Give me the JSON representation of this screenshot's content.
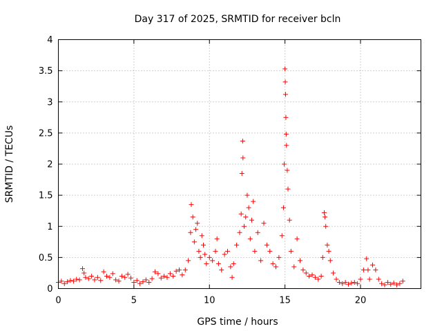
{
  "chart_data": {
    "type": "scatter",
    "title": "Day 317 of 2025, SRMTID for receiver bcln",
    "xlabel": "GPS time / hours",
    "ylabel": "SRMTID / TECUs",
    "xlim": [
      0,
      24
    ],
    "ylim": [
      0,
      4
    ],
    "xticks": [
      0,
      5,
      10,
      15,
      20
    ],
    "xtick_labels": [
      "0",
      "5",
      "10",
      "15",
      "20"
    ],
    "yticks": [
      0,
      0.5,
      1,
      1.5,
      2,
      2.5,
      3,
      3.5,
      4
    ],
    "ytick_labels": [
      "0",
      "0.5",
      "1",
      "1.5",
      "2",
      "2.5",
      "3",
      "3.5",
      "4"
    ],
    "grid": true,
    "marker": "+",
    "series": [
      {
        "name": "SRMTID",
        "color": "#ff0000",
        "points": [
          [
            0.0,
            0.1
          ],
          [
            0.2,
            0.12
          ],
          [
            0.4,
            0.08
          ],
          [
            0.6,
            0.11
          ],
          [
            0.8,
            0.13
          ],
          [
            1.0,
            0.12
          ],
          [
            1.2,
            0.15
          ],
          [
            1.4,
            0.14
          ],
          [
            1.6,
            0.32
          ],
          [
            1.7,
            0.25
          ],
          [
            1.8,
            0.18
          ],
          [
            2.0,
            0.16
          ],
          [
            2.2,
            0.2
          ],
          [
            2.4,
            0.14
          ],
          [
            2.6,
            0.18
          ],
          [
            2.8,
            0.13
          ],
          [
            3.0,
            0.27
          ],
          [
            3.2,
            0.2
          ],
          [
            3.4,
            0.18
          ],
          [
            3.6,
            0.24
          ],
          [
            3.8,
            0.14
          ],
          [
            4.0,
            0.12
          ],
          [
            4.2,
            0.2
          ],
          [
            4.4,
            0.18
          ],
          [
            4.6,
            0.23
          ],
          [
            4.8,
            0.17
          ],
          [
            5.0,
            0.1
          ],
          [
            5.2,
            0.13
          ],
          [
            5.4,
            0.08
          ],
          [
            5.6,
            0.11
          ],
          [
            5.8,
            0.14
          ],
          [
            6.0,
            0.1
          ],
          [
            6.2,
            0.16
          ],
          [
            6.4,
            0.27
          ],
          [
            6.6,
            0.24
          ],
          [
            6.8,
            0.17
          ],
          [
            7.0,
            0.2
          ],
          [
            7.2,
            0.18
          ],
          [
            7.4,
            0.24
          ],
          [
            7.6,
            0.2
          ],
          [
            7.8,
            0.28
          ],
          [
            8.0,
            0.3
          ],
          [
            8.2,
            0.22
          ],
          [
            8.4,
            0.3
          ],
          [
            8.6,
            0.45
          ],
          [
            8.75,
            0.9
          ],
          [
            8.8,
            1.35
          ],
          [
            8.9,
            1.15
          ],
          [
            9.0,
            0.75
          ],
          [
            9.1,
            0.95
          ],
          [
            9.2,
            1.05
          ],
          [
            9.3,
            0.6
          ],
          [
            9.4,
            0.5
          ],
          [
            9.5,
            0.85
          ],
          [
            9.6,
            0.7
          ],
          [
            9.7,
            0.55
          ],
          [
            9.8,
            0.4
          ],
          [
            10.0,
            0.5
          ],
          [
            10.2,
            0.45
          ],
          [
            10.4,
            0.6
          ],
          [
            10.5,
            0.8
          ],
          [
            10.6,
            0.4
          ],
          [
            10.8,
            0.3
          ],
          [
            11.0,
            0.55
          ],
          [
            11.2,
            0.6
          ],
          [
            11.4,
            0.35
          ],
          [
            11.5,
            0.18
          ],
          [
            11.6,
            0.4
          ],
          [
            11.8,
            0.7
          ],
          [
            12.0,
            0.9
          ],
          [
            12.1,
            1.2
          ],
          [
            12.15,
            1.85
          ],
          [
            12.2,
            2.37
          ],
          [
            12.22,
            2.1
          ],
          [
            12.3,
            1.0
          ],
          [
            12.4,
            1.15
          ],
          [
            12.5,
            1.5
          ],
          [
            12.6,
            1.3
          ],
          [
            12.7,
            0.8
          ],
          [
            12.8,
            1.1
          ],
          [
            12.9,
            1.4
          ],
          [
            13.0,
            0.6
          ],
          [
            13.2,
            0.9
          ],
          [
            13.4,
            0.45
          ],
          [
            13.6,
            1.05
          ],
          [
            13.8,
            0.7
          ],
          [
            14.0,
            0.6
          ],
          [
            14.2,
            0.4
          ],
          [
            14.4,
            0.35
          ],
          [
            14.6,
            0.5
          ],
          [
            14.8,
            0.85
          ],
          [
            14.9,
            1.3
          ],
          [
            14.95,
            2.0
          ],
          [
            15.0,
            3.53
          ],
          [
            15.02,
            3.32
          ],
          [
            15.04,
            3.12
          ],
          [
            15.06,
            2.75
          ],
          [
            15.08,
            2.48
          ],
          [
            15.1,
            2.3
          ],
          [
            15.15,
            1.9
          ],
          [
            15.2,
            1.6
          ],
          [
            15.3,
            1.1
          ],
          [
            15.4,
            0.6
          ],
          [
            15.6,
            0.35
          ],
          [
            15.8,
            0.8
          ],
          [
            16.0,
            0.45
          ],
          [
            16.2,
            0.3
          ],
          [
            16.4,
            0.25
          ],
          [
            16.6,
            0.2
          ],
          [
            16.8,
            0.22
          ],
          [
            17.0,
            0.18
          ],
          [
            17.2,
            0.15
          ],
          [
            17.4,
            0.2
          ],
          [
            17.5,
            0.5
          ],
          [
            17.6,
            1.22
          ],
          [
            17.65,
            1.15
          ],
          [
            17.7,
            1.0
          ],
          [
            17.8,
            0.7
          ],
          [
            17.9,
            0.6
          ],
          [
            18.0,
            0.45
          ],
          [
            18.2,
            0.25
          ],
          [
            18.4,
            0.15
          ],
          [
            18.6,
            0.1
          ],
          [
            18.8,
            0.08
          ],
          [
            19.0,
            0.1
          ],
          [
            19.2,
            0.07
          ],
          [
            19.4,
            0.09
          ],
          [
            19.6,
            0.1
          ],
          [
            19.8,
            0.08
          ],
          [
            20.0,
            0.15
          ],
          [
            20.2,
            0.3
          ],
          [
            20.4,
            0.48
          ],
          [
            20.5,
            0.3
          ],
          [
            20.6,
            0.15
          ],
          [
            20.8,
            0.38
          ],
          [
            21.0,
            0.3
          ],
          [
            21.2,
            0.15
          ],
          [
            21.4,
            0.08
          ],
          [
            21.6,
            0.06
          ],
          [
            21.8,
            0.1
          ],
          [
            22.0,
            0.07
          ],
          [
            22.2,
            0.09
          ],
          [
            22.4,
            0.06
          ],
          [
            22.6,
            0.08
          ],
          [
            22.8,
            0.12
          ]
        ]
      }
    ]
  }
}
